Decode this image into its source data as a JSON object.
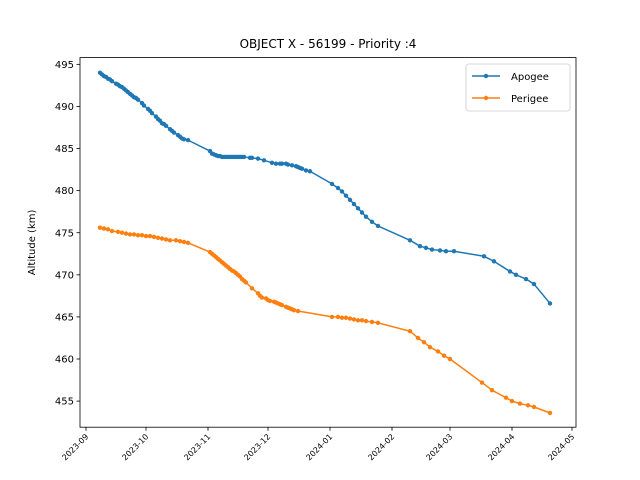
{
  "chart_data": {
    "type": "line",
    "title": "OBJECT X - 56199 - Priority :4",
    "xlabel": "",
    "ylabel": "Altitude (km)",
    "x_ticks": [
      "2023-09",
      "2023-10",
      "2023-11",
      "2023-12",
      "2024-01",
      "2024-02",
      "2024-03",
      "2024-04",
      "2024-05"
    ],
    "xlim": [
      "2023-08-29",
      "2024-05-03"
    ],
    "ylim": [
      451.9,
      495.8
    ],
    "y_ticks": [
      455,
      460,
      465,
      470,
      475,
      480,
      485,
      490,
      495
    ],
    "grid": false,
    "legend": "top-right",
    "series": [
      {
        "name": "Apogee",
        "color": "#1f77b4",
        "points": [
          [
            "2023-09-08",
            494.0
          ],
          [
            "2023-09-09",
            493.8
          ],
          [
            "2023-09-10",
            493.6
          ],
          [
            "2023-09-11",
            493.5
          ],
          [
            "2023-09-12",
            493.3
          ],
          [
            "2023-09-13",
            493.2
          ],
          [
            "2023-09-14",
            493.0
          ],
          [
            "2023-09-16",
            492.7
          ],
          [
            "2023-09-17",
            492.6
          ],
          [
            "2023-09-18",
            492.4
          ],
          [
            "2023-09-19",
            492.3
          ],
          [
            "2023-09-20",
            492.1
          ],
          [
            "2023-09-21",
            491.9
          ],
          [
            "2023-09-22",
            491.7
          ],
          [
            "2023-09-23",
            491.5
          ],
          [
            "2023-09-24",
            491.3
          ],
          [
            "2023-09-25",
            491.1
          ],
          [
            "2023-09-26",
            491.0
          ],
          [
            "2023-09-27",
            490.8
          ],
          [
            "2023-09-29",
            490.4
          ],
          [
            "2023-09-30",
            490.1
          ],
          [
            "2023-10-02",
            489.7
          ],
          [
            "2023-10-03",
            489.5
          ],
          [
            "2023-10-04",
            489.2
          ],
          [
            "2023-10-06",
            488.8
          ],
          [
            "2023-10-07",
            488.5
          ],
          [
            "2023-10-08",
            488.3
          ],
          [
            "2023-10-09",
            488.0
          ],
          [
            "2023-10-10",
            487.9
          ],
          [
            "2023-10-11",
            487.7
          ],
          [
            "2023-10-13",
            487.3
          ],
          [
            "2023-10-14",
            487.1
          ],
          [
            "2023-10-15",
            486.9
          ],
          [
            "2023-10-17",
            486.6
          ],
          [
            "2023-10-18",
            486.4
          ],
          [
            "2023-10-19",
            486.2
          ],
          [
            "2023-10-20",
            486.1
          ],
          [
            "2023-10-22",
            486.0
          ],
          [
            "2023-11-02",
            484.7
          ],
          [
            "2023-11-03",
            484.4
          ],
          [
            "2023-11-04",
            484.3
          ],
          [
            "2023-11-05",
            484.2
          ],
          [
            "2023-11-06",
            484.1
          ],
          [
            "2023-11-07",
            484.1
          ],
          [
            "2023-11-08",
            484.0
          ],
          [
            "2023-11-09",
            484.0
          ],
          [
            "2023-11-10",
            484.0
          ],
          [
            "2023-11-11",
            484.0
          ],
          [
            "2023-11-12",
            484.0
          ],
          [
            "2023-11-13",
            484.0
          ],
          [
            "2023-11-14",
            484.0
          ],
          [
            "2023-11-15",
            484.0
          ],
          [
            "2023-11-16",
            484.0
          ],
          [
            "2023-11-17",
            484.0
          ],
          [
            "2023-11-18",
            484.0
          ],
          [
            "2023-11-19",
            484.0
          ],
          [
            "2023-11-22",
            483.9
          ],
          [
            "2023-11-23",
            483.9
          ],
          [
            "2023-11-26",
            483.8
          ],
          [
            "2023-11-29",
            483.6
          ],
          [
            "2023-12-03",
            483.3
          ],
          [
            "2023-12-05",
            483.2
          ],
          [
            "2023-12-07",
            483.2
          ],
          [
            "2023-12-08",
            483.2
          ],
          [
            "2023-12-10",
            483.2
          ],
          [
            "2023-12-11",
            483.1
          ],
          [
            "2023-12-13",
            483.0
          ],
          [
            "2023-12-15",
            482.9
          ],
          [
            "2023-12-16",
            482.8
          ],
          [
            "2023-12-17",
            482.7
          ],
          [
            "2023-12-18",
            482.6
          ],
          [
            "2023-12-20",
            482.4
          ],
          [
            "2023-12-22",
            482.3
          ],
          [
            "2024-01-02",
            480.8
          ],
          [
            "2024-01-05",
            480.3
          ],
          [
            "2024-01-07",
            479.9
          ],
          [
            "2024-01-09",
            479.4
          ],
          [
            "2024-01-11",
            478.9
          ],
          [
            "2024-01-13",
            478.4
          ],
          [
            "2024-01-15",
            477.9
          ],
          [
            "2024-01-17",
            477.4
          ],
          [
            "2024-01-19",
            476.9
          ],
          [
            "2024-01-22",
            476.3
          ],
          [
            "2024-01-25",
            475.8
          ],
          [
            "2024-02-10",
            474.1
          ],
          [
            "2024-02-15",
            473.4
          ],
          [
            "2024-02-18",
            473.2
          ],
          [
            "2024-02-21",
            473.0
          ],
          [
            "2024-02-25",
            472.9
          ],
          [
            "2024-02-28",
            472.8
          ],
          [
            "2024-03-03",
            472.8
          ],
          [
            "2024-03-18",
            472.2
          ],
          [
            "2024-03-23",
            471.6
          ],
          [
            "2024-03-31",
            470.4
          ],
          [
            "2024-04-03",
            470.0
          ],
          [
            "2024-04-08",
            469.5
          ],
          [
            "2024-04-12",
            468.9
          ],
          [
            "2024-04-20",
            466.6
          ]
        ]
      },
      {
        "name": "Perigee",
        "color": "#ff7f0e",
        "points": [
          [
            "2023-09-08",
            475.6
          ],
          [
            "2023-09-10",
            475.5
          ],
          [
            "2023-09-12",
            475.4
          ],
          [
            "2023-09-14",
            475.2
          ],
          [
            "2023-09-17",
            475.1
          ],
          [
            "2023-09-19",
            475.0
          ],
          [
            "2023-09-21",
            474.9
          ],
          [
            "2023-09-23",
            474.8
          ],
          [
            "2023-09-25",
            474.8
          ],
          [
            "2023-09-27",
            474.7
          ],
          [
            "2023-09-29",
            474.7
          ],
          [
            "2023-10-01",
            474.6
          ],
          [
            "2023-10-03",
            474.6
          ],
          [
            "2023-10-05",
            474.5
          ],
          [
            "2023-10-07",
            474.4
          ],
          [
            "2023-10-09",
            474.3
          ],
          [
            "2023-10-11",
            474.2
          ],
          [
            "2023-10-13",
            474.1
          ],
          [
            "2023-10-16",
            474.1
          ],
          [
            "2023-10-18",
            474.0
          ],
          [
            "2023-10-20",
            473.9
          ],
          [
            "2023-10-22",
            473.8
          ],
          [
            "2023-11-02",
            472.7
          ],
          [
            "2023-11-03",
            472.5
          ],
          [
            "2023-11-04",
            472.3
          ],
          [
            "2023-11-05",
            472.1
          ],
          [
            "2023-11-06",
            471.9
          ],
          [
            "2023-11-07",
            471.7
          ],
          [
            "2023-11-08",
            471.5
          ],
          [
            "2023-11-09",
            471.3
          ],
          [
            "2023-11-10",
            471.1
          ],
          [
            "2023-11-11",
            470.9
          ],
          [
            "2023-11-12",
            470.7
          ],
          [
            "2023-11-13",
            470.5
          ],
          [
            "2023-11-14",
            470.4
          ],
          [
            "2023-11-15",
            470.2
          ],
          [
            "2023-11-16",
            470.0
          ],
          [
            "2023-11-17",
            469.8
          ],
          [
            "2023-11-18",
            469.5
          ],
          [
            "2023-11-19",
            469.3
          ],
          [
            "2023-11-20",
            469.1
          ],
          [
            "2023-11-23",
            468.4
          ],
          [
            "2023-11-26",
            467.8
          ],
          [
            "2023-11-27",
            467.5
          ],
          [
            "2023-11-28",
            467.3
          ],
          [
            "2023-11-30",
            467.2
          ],
          [
            "2023-12-01",
            467.0
          ],
          [
            "2023-12-02",
            466.9
          ],
          [
            "2023-12-04",
            466.8
          ],
          [
            "2023-12-05",
            466.7
          ],
          [
            "2023-12-06",
            466.6
          ],
          [
            "2023-12-07",
            466.5
          ],
          [
            "2023-12-08",
            466.4
          ],
          [
            "2023-12-10",
            466.2
          ],
          [
            "2023-12-11",
            466.1
          ],
          [
            "2023-12-12",
            466.0
          ],
          [
            "2023-12-13",
            465.9
          ],
          [
            "2023-12-14",
            465.8
          ],
          [
            "2023-12-16",
            465.7
          ],
          [
            "2024-01-02",
            465.0
          ],
          [
            "2024-01-05",
            465.0
          ],
          [
            "2024-01-07",
            464.9
          ],
          [
            "2024-01-09",
            464.9
          ],
          [
            "2024-01-11",
            464.8
          ],
          [
            "2024-01-13",
            464.7
          ],
          [
            "2024-01-15",
            464.6
          ],
          [
            "2024-01-17",
            464.6
          ],
          [
            "2024-01-19",
            464.5
          ],
          [
            "2024-01-22",
            464.4
          ],
          [
            "2024-01-25",
            464.3
          ],
          [
            "2024-02-10",
            463.3
          ],
          [
            "2024-02-14",
            462.5
          ],
          [
            "2024-02-17",
            462.0
          ],
          [
            "2024-02-20",
            461.4
          ],
          [
            "2024-02-24",
            460.9
          ],
          [
            "2024-02-27",
            460.4
          ],
          [
            "2024-03-01",
            460.0
          ],
          [
            "2024-03-17",
            457.2
          ],
          [
            "2024-03-22",
            456.3
          ],
          [
            "2024-03-29",
            455.4
          ],
          [
            "2024-04-01",
            455.0
          ],
          [
            "2024-04-05",
            454.7
          ],
          [
            "2024-04-09",
            454.5
          ],
          [
            "2024-04-12",
            454.3
          ],
          [
            "2024-04-20",
            453.6
          ]
        ]
      }
    ]
  }
}
